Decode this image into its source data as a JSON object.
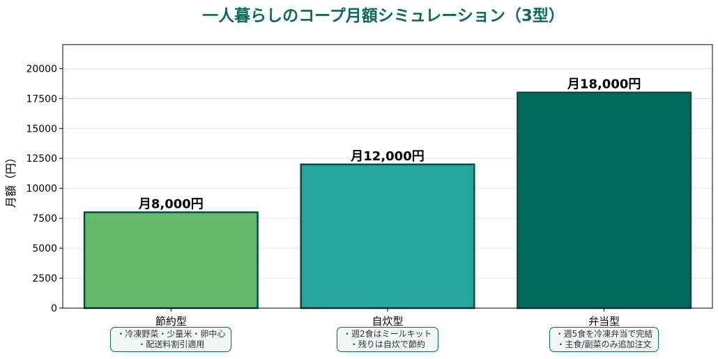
{
  "chart_data": {
    "type": "bar",
    "title": "一人暮らしのコープ月額シミュレーション（3型）",
    "xlabel": "",
    "ylabel": "月額（円）",
    "ylim": [
      0,
      22000
    ],
    "yticks": [
      "0",
      "2500",
      "5000",
      "7500",
      "10000",
      "12500",
      "15000",
      "17500",
      "20000"
    ],
    "grid": "horizontal",
    "categories": [
      "節約型",
      "自炊型",
      "弁当型"
    ],
    "values": [
      8000,
      12000,
      18000
    ],
    "data_labels": [
      "月8,000円",
      "月12,000円",
      "月18,000円"
    ],
    "colors": [
      "#66bb6a",
      "#26a69a",
      "#00695c"
    ],
    "edge_color": "#004d40",
    "notes": [
      [
        "・冷凍野菜・少量米・卵中心",
        "・配送料割引適用"
      ],
      [
        "・週2食はミールキット",
        "・残りは自炊で節約"
      ],
      [
        "・週5食を冷凍弁当で完結",
        "・主食/副菜のみ追加注文"
      ]
    ]
  }
}
